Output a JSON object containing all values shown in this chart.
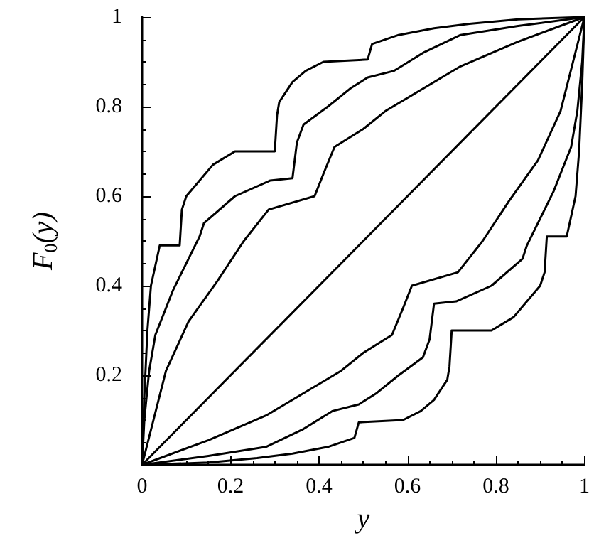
{
  "chart_data": {
    "type": "line",
    "xlabel": "y",
    "ylabel": "F$_{0}$(y)",
    "xlim": [
      0,
      1
    ],
    "ylim": [
      0,
      1
    ],
    "xticks": [
      0,
      0.2,
      0.4,
      0.6,
      0.8,
      1
    ],
    "yticks": [
      {
        "value": 0,
        "label": null
      },
      0.2,
      0.4,
      0.6,
      0.8,
      1
    ],
    "grid": false,
    "marker": "none",
    "line_style": "solid",
    "series": [
      {
        "color": "#000000",
        "x": [
          0,
          0.005,
          0.012,
          0.02,
          0.04,
          0.085,
          0.09,
          0.1,
          0.16,
          0.21,
          0.3,
          0.305,
          0.31,
          0.34,
          0.37,
          0.41,
          0.51,
          0.52,
          0.58,
          0.66,
          0.74,
          0.85,
          1
        ],
        "values": [
          0,
          0.15,
          0.3,
          0.4,
          0.49,
          0.49,
          0.57,
          0.6,
          0.67,
          0.7,
          0.7,
          0.78,
          0.81,
          0.855,
          0.88,
          0.9,
          0.905,
          0.94,
          0.96,
          0.975,
          0.985,
          0.995,
          1
        ]
      },
      {
        "color": "#000000",
        "x": [
          0,
          0.005,
          0.016,
          0.03,
          0.07,
          0.13,
          0.14,
          0.21,
          0.29,
          0.34,
          0.35,
          0.365,
          0.42,
          0.47,
          0.51,
          0.57,
          0.635,
          0.72,
          0.85,
          1
        ],
        "values": [
          0,
          0.1,
          0.21,
          0.29,
          0.39,
          0.51,
          0.54,
          0.6,
          0.635,
          0.64,
          0.72,
          0.76,
          0.8,
          0.84,
          0.865,
          0.88,
          0.92,
          0.96,
          0.98,
          1
        ]
      },
      {
        "color": "#000000",
        "x": [
          0,
          0.054,
          0.105,
          0.17,
          0.23,
          0.286,
          0.39,
          0.41,
          0.435,
          0.5,
          0.55,
          0.635,
          0.72,
          0.85,
          1
        ],
        "values": [
          0,
          0.21,
          0.32,
          0.41,
          0.5,
          0.57,
          0.6,
          0.65,
          0.71,
          0.75,
          0.79,
          0.84,
          0.89,
          0.945,
          1
        ]
      },
      {
        "color": "#000000",
        "x": [
          0,
          1
        ],
        "values": [
          0,
          1
        ]
      },
      {
        "color": "#000000",
        "x": [
          0,
          0.15,
          0.28,
          0.365,
          0.45,
          0.5,
          0.565,
          0.59,
          0.61,
          0.714,
          0.77,
          0.83,
          0.895,
          0.946,
          1
        ],
        "values": [
          0,
          0.055,
          0.11,
          0.16,
          0.21,
          0.25,
          0.29,
          0.35,
          0.4,
          0.43,
          0.5,
          0.59,
          0.68,
          0.79,
          1
        ]
      },
      {
        "color": "#000000",
        "x": [
          0,
          0.15,
          0.28,
          0.365,
          0.43,
          0.49,
          0.53,
          0.58,
          0.635,
          0.65,
          0.66,
          0.71,
          0.79,
          0.86,
          0.87,
          0.93,
          0.97,
          0.984,
          0.995,
          1
        ],
        "values": [
          0,
          0.02,
          0.04,
          0.08,
          0.12,
          0.135,
          0.16,
          0.2,
          0.24,
          0.28,
          0.36,
          0.365,
          0.4,
          0.46,
          0.49,
          0.61,
          0.71,
          0.79,
          0.9,
          1
        ]
      },
      {
        "color": "#000000",
        "x": [
          0,
          0.15,
          0.26,
          0.34,
          0.42,
          0.48,
          0.49,
          0.59,
          0.63,
          0.66,
          0.69,
          0.695,
          0.7,
          0.79,
          0.84,
          0.9,
          0.91,
          0.915,
          0.96,
          0.98,
          0.988,
          0.995,
          1
        ],
        "values": [
          0,
          0.005,
          0.015,
          0.025,
          0.04,
          0.06,
          0.095,
          0.1,
          0.12,
          0.145,
          0.19,
          0.22,
          0.3,
          0.3,
          0.33,
          0.4,
          0.43,
          0.51,
          0.51,
          0.6,
          0.7,
          0.85,
          1
        ]
      }
    ]
  }
}
